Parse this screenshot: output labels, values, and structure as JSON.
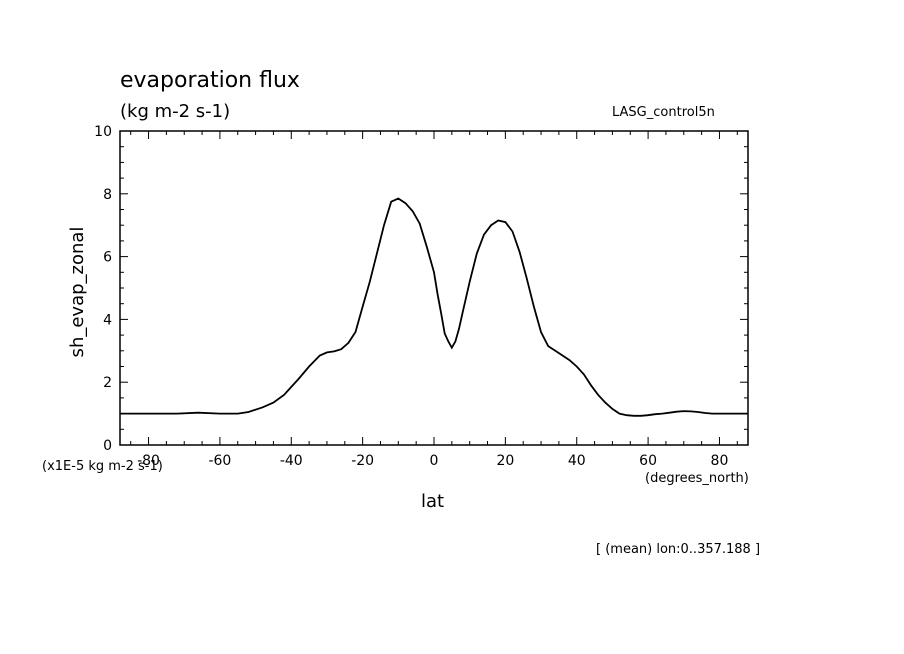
{
  "chart_data": {
    "type": "line",
    "title": "evaporation flux",
    "subtitle": "(kg m-2 s-1)",
    "dataset_label": "LASG_control5n",
    "xlabel": "lat",
    "x_units": "(degrees_north)",
    "ylabel": "sh_evap_zonal",
    "y_scale_label": "(x1E-5 kg m-2 s-1)",
    "footer": "[ (mean) lon:0..357.188 ]",
    "xlim": [
      -88,
      88
    ],
    "ylim": [
      0,
      10
    ],
    "x_ticks": [
      -80,
      -60,
      -40,
      -20,
      0,
      20,
      40,
      60,
      80
    ],
    "y_ticks": [
      0,
      2,
      4,
      6,
      8,
      10
    ],
    "grid": false,
    "series": [
      {
        "x": [
          -88,
          -80,
          -72,
          -66,
          -60,
          -55,
          -52,
          -48,
          -45,
          -42,
          -40,
          -38,
          -35,
          -32,
          -30,
          -28,
          -26,
          -24,
          -22,
          -20,
          -18,
          -16,
          -14,
          -12,
          -10,
          -8,
          -6,
          -4,
          -2,
          0,
          1,
          2,
          3,
          4,
          5,
          6,
          7,
          8,
          10,
          12,
          14,
          16,
          18,
          20,
          22,
          24,
          26,
          28,
          30,
          32,
          34,
          36,
          38,
          40,
          42,
          44,
          46,
          48,
          50,
          52,
          54,
          56,
          58,
          60,
          62,
          64,
          66,
          68,
          70,
          72,
          74,
          76,
          78,
          80,
          84,
          88
        ],
        "y": [
          1.0,
          1.0,
          1.0,
          1.03,
          1.0,
          1.0,
          1.05,
          1.2,
          1.35,
          1.6,
          1.85,
          2.1,
          2.5,
          2.85,
          2.95,
          2.98,
          3.05,
          3.25,
          3.6,
          4.4,
          5.2,
          6.1,
          7.0,
          7.75,
          7.85,
          7.7,
          7.45,
          7.05,
          6.3,
          5.5,
          4.8,
          4.2,
          3.55,
          3.3,
          3.1,
          3.3,
          3.7,
          4.2,
          5.2,
          6.1,
          6.7,
          7.0,
          7.15,
          7.1,
          6.8,
          6.15,
          5.3,
          4.4,
          3.6,
          3.15,
          3.0,
          2.85,
          2.7,
          2.5,
          2.25,
          1.9,
          1.6,
          1.35,
          1.15,
          1.0,
          0.95,
          0.93,
          0.93,
          0.95,
          0.98,
          1.0,
          1.03,
          1.06,
          1.08,
          1.07,
          1.05,
          1.02,
          1.0,
          1.0,
          1.0,
          1.0
        ]
      }
    ]
  }
}
